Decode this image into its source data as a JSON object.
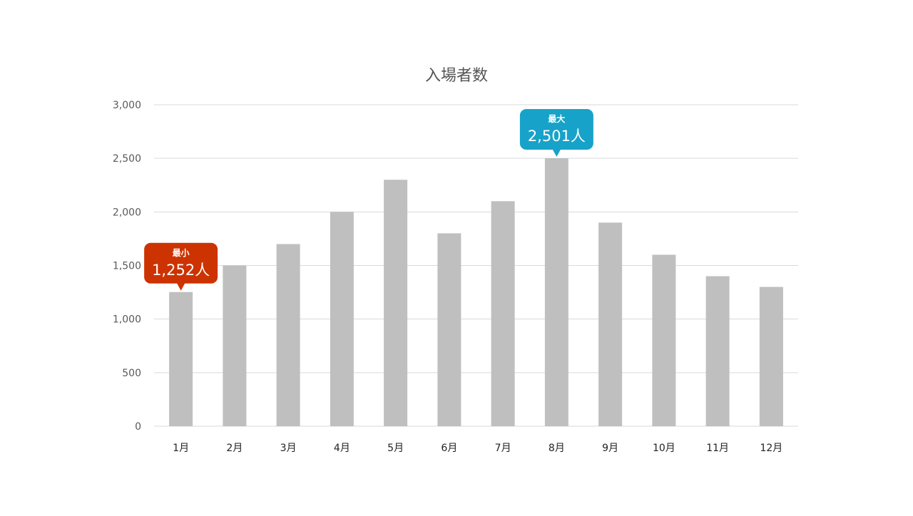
{
  "chart_data": {
    "type": "bar",
    "title": "入場者数",
    "xlabel": "",
    "ylabel": "",
    "categories": [
      "1月",
      "2月",
      "3月",
      "4月",
      "5月",
      "6月",
      "7月",
      "8月",
      "9月",
      "10月",
      "11月",
      "12月"
    ],
    "values": [
      1252,
      1500,
      1700,
      2000,
      2300,
      1800,
      2100,
      2501,
      1900,
      1600,
      1400,
      1300
    ],
    "ylim": [
      0,
      3000
    ],
    "yticks": [
      "0",
      "500",
      "1,000",
      "1,500",
      "2,000",
      "2,500",
      "3,000"
    ],
    "ytick_values": [
      0,
      500,
      1000,
      1500,
      2000,
      2500,
      3000
    ],
    "grid": true,
    "bar_color": "#bfbfbf",
    "annotations": [
      {
        "category": "1月",
        "label": "最小",
        "value_text": "1,252人",
        "color": "#cc3300"
      },
      {
        "category": "8月",
        "label": "最大",
        "value_text": "2,501人",
        "color": "#17a2c9"
      }
    ]
  }
}
